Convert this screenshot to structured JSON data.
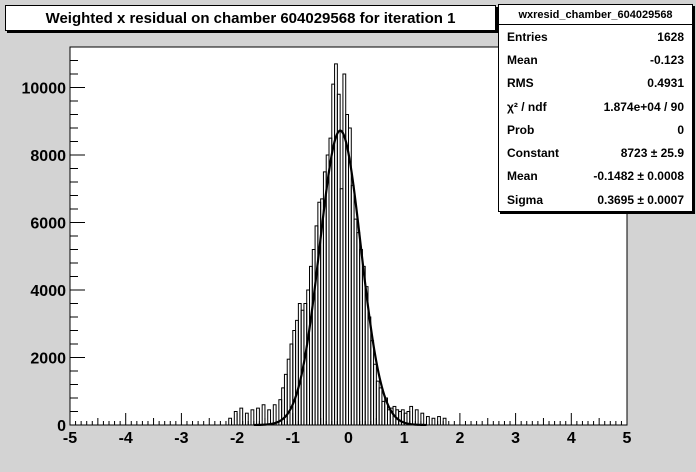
{
  "chart_data": {
    "type": "histogram",
    "title": "Weighted x residual on chamber 604029568 for iteration 1",
    "xlabel": "",
    "ylabel": "",
    "xlim": [
      -5,
      5
    ],
    "ylim": [
      0,
      11200
    ],
    "xticks": [
      -5,
      -4,
      -3,
      -2,
      -1,
      0,
      1,
      2,
      3,
      4,
      5
    ],
    "yticks": [
      0,
      2000,
      4000,
      6000,
      8000,
      10000
    ],
    "bin_width": 0.05,
    "histogram": {
      "bin_centers": [
        -2.125,
        -2.025,
        -1.925,
        -1.825,
        -1.725,
        -1.625,
        -1.525,
        -1.425,
        -1.325,
        -1.225,
        -1.175,
        -1.125,
        -1.075,
        -1.025,
        -0.975,
        -0.925,
        -0.875,
        -0.825,
        -0.775,
        -0.725,
        -0.675,
        -0.625,
        -0.575,
        -0.525,
        -0.475,
        -0.425,
        -0.375,
        -0.325,
        -0.275,
        -0.225,
        -0.175,
        -0.125,
        -0.075,
        -0.025,
        0.025,
        0.075,
        0.125,
        0.175,
        0.225,
        0.275,
        0.325,
        0.375,
        0.425,
        0.475,
        0.525,
        0.575,
        0.625,
        0.675,
        0.725,
        0.775,
        0.825,
        0.875,
        0.925,
        0.975,
        1.025,
        1.075,
        1.125,
        1.225,
        1.325,
        1.425,
        1.525,
        1.625,
        1.725
      ],
      "counts": [
        200,
        400,
        500,
        350,
        450,
        500,
        600,
        450,
        600,
        750,
        1100,
        1500,
        1950,
        2400,
        2800,
        3100,
        3600,
        3400,
        3600,
        4000,
        4700,
        5200,
        5900,
        6600,
        6700,
        7500,
        8000,
        8500,
        10100,
        10700,
        9800,
        7000,
        10400,
        9200,
        8800,
        7100,
        6100,
        5700,
        5200,
        4700,
        4100,
        3200,
        2500,
        1800,
        1300,
        1100,
        700,
        800,
        450,
        500,
        550,
        450,
        400,
        450,
        350,
        400,
        550,
        450,
        350,
        250,
        200,
        250,
        200
      ]
    },
    "fit": {
      "function": "gaussian",
      "constant": 8723,
      "mean": -0.1482,
      "sigma": 0.3695
    },
    "stats_box": {
      "name": "wxresid_chamber_604029568",
      "rows": [
        {
          "label": "Entries",
          "value": "1628"
        },
        {
          "label": "Mean",
          "value": "-0.123"
        },
        {
          "label": "RMS",
          "value": "0.4931"
        },
        {
          "label": "χ² / ndf",
          "value": "1.874e+04 / 90"
        },
        {
          "label": "Prob",
          "value": "0"
        },
        {
          "label": "Constant",
          "value": "8723 ± 25.9"
        },
        {
          "label": "Mean",
          "value": "-0.1482 ± 0.0008"
        },
        {
          "label": "Sigma",
          "value": "0.3695 ± 0.0007"
        }
      ]
    },
    "grid": false,
    "legend": "top-right"
  }
}
